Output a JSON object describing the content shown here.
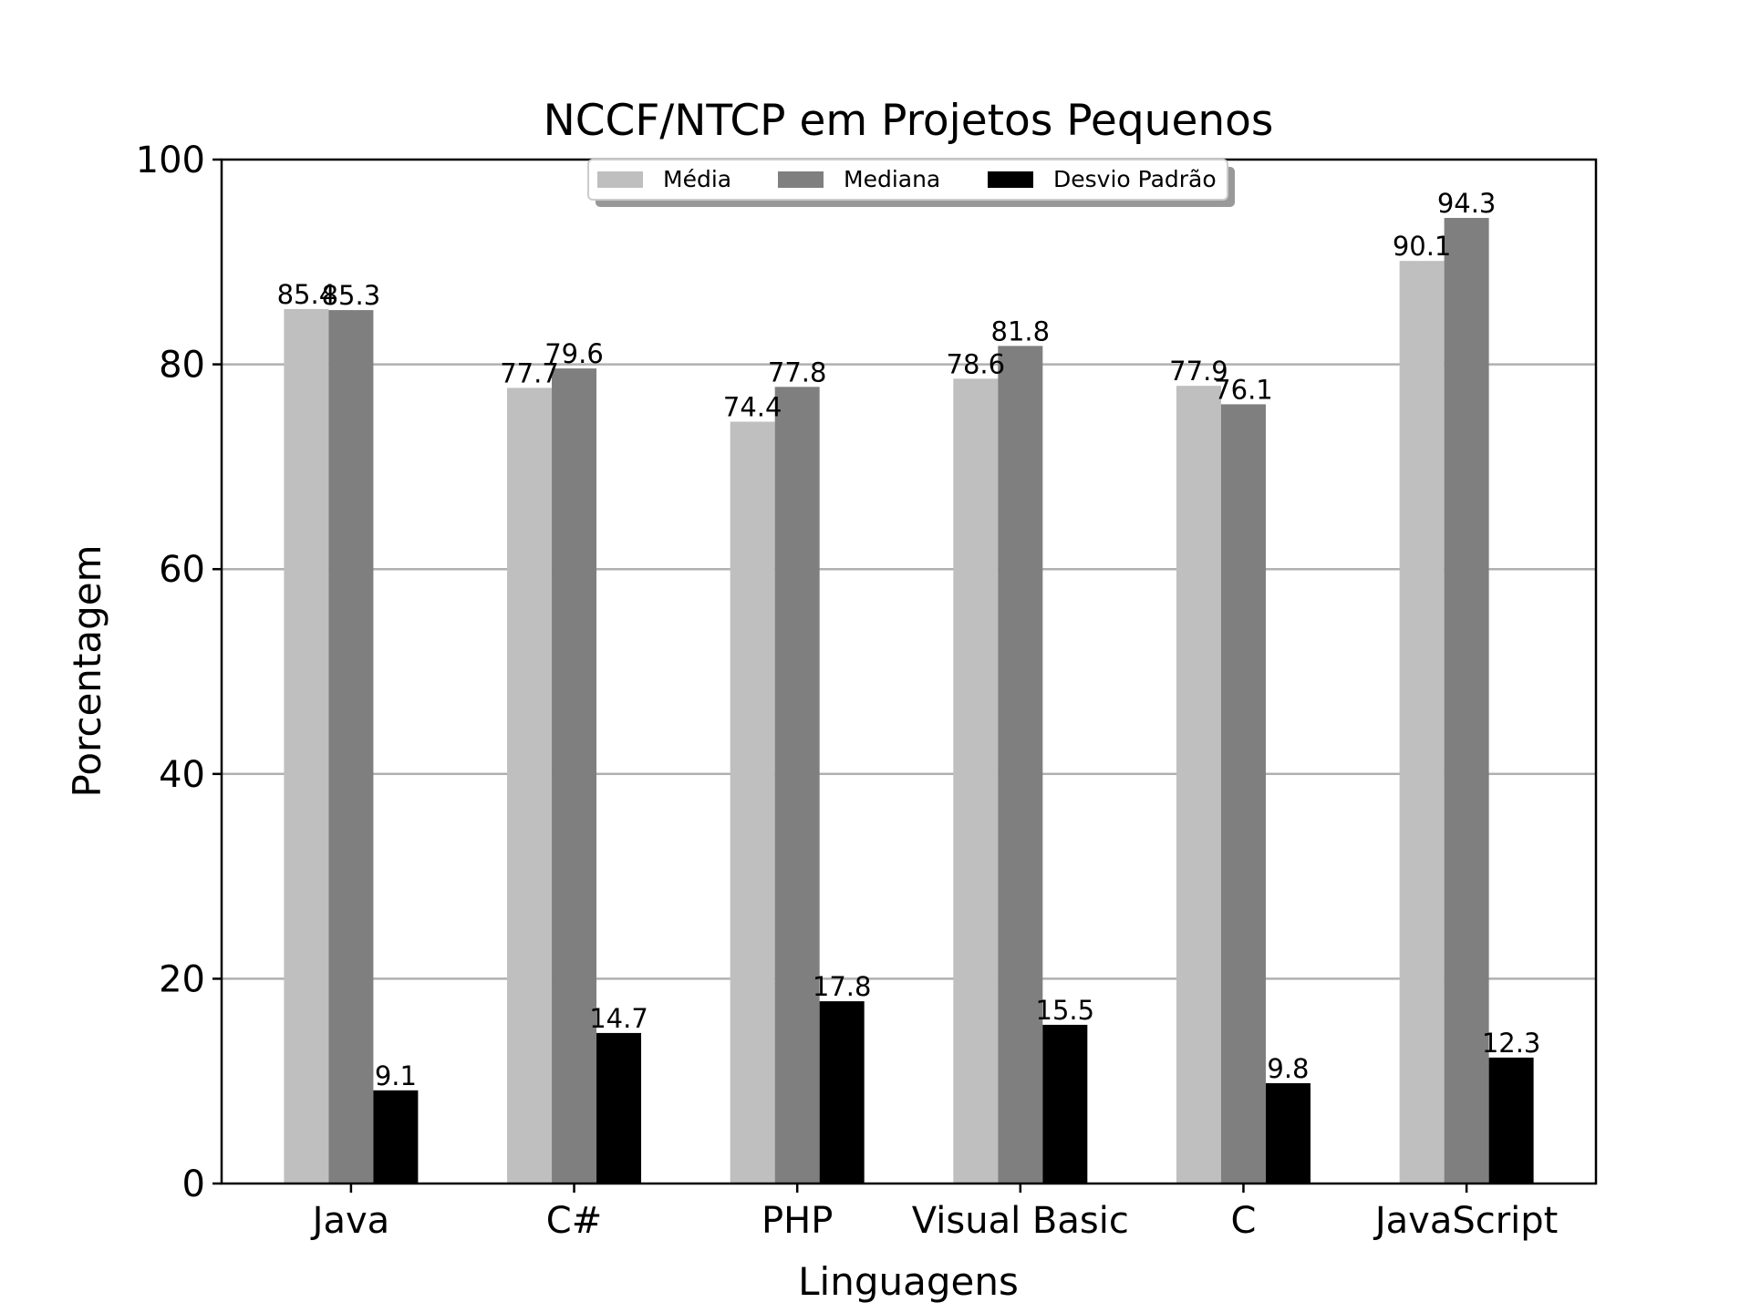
{
  "chart_data": {
    "type": "bar",
    "title": "NCCF/NTCP em Projetos Pequenos",
    "xlabel": "Linguagens",
    "ylabel": "Porcentagem",
    "ylim": [
      0,
      100
    ],
    "yticks": [
      0,
      20,
      40,
      60,
      80,
      100
    ],
    "grid": "horizontal",
    "legend_placement": "top-center",
    "categories": [
      "Java",
      "C#",
      "PHP",
      "Visual Basic",
      "C",
      "JavaScript"
    ],
    "series": [
      {
        "name": "Média",
        "color": "#bfbfbf",
        "values": [
          85.4,
          77.7,
          74.4,
          78.6,
          77.9,
          90.1
        ]
      },
      {
        "name": "Mediana",
        "color": "#7f7f7f",
        "values": [
          85.3,
          79.6,
          77.8,
          81.8,
          76.1,
          94.3
        ]
      },
      {
        "name": "Desvio Padrão",
        "color": "#000000",
        "values": [
          9.1,
          14.7,
          17.8,
          15.5,
          9.8,
          12.3
        ]
      }
    ]
  }
}
